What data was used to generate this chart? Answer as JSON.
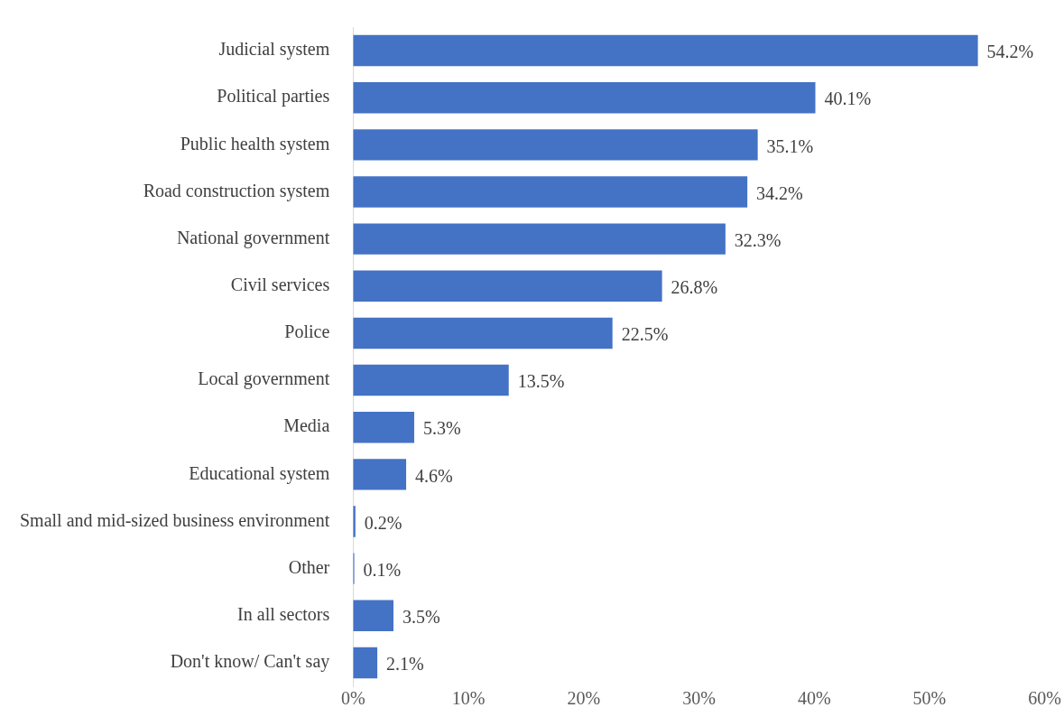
{
  "chart_data": {
    "type": "bar",
    "orientation": "horizontal",
    "categories": [
      "Judicial system",
      "Political parties",
      "Public health system",
      "Road construction system",
      "National government",
      "Civil services",
      "Police",
      "Local government",
      "Media",
      "Educational system",
      "Small and mid-sized business environment",
      "Other",
      "In all sectors",
      "Don't know/ Can't say"
    ],
    "values": [
      54.2,
      40.1,
      35.1,
      34.2,
      32.3,
      26.8,
      22.5,
      13.5,
      5.3,
      4.6,
      0.2,
      0.1,
      3.5,
      2.1
    ],
    "value_labels": [
      "54.2%",
      "40.1%",
      "35.1%",
      "34.2%",
      "32.3%",
      "26.8%",
      "22.5%",
      "13.5%",
      "5.3%",
      "4.6%",
      "0.2%",
      "0.1%",
      "3.5%",
      "2.1%"
    ],
    "color": "#4472c4",
    "xlim": [
      0,
      60
    ],
    "xticks": [
      {
        "value": 0,
        "label": "0%"
      },
      {
        "value": 10,
        "label": "10%"
      },
      {
        "value": 20,
        "label": "20%"
      },
      {
        "value": 30,
        "label": "30%"
      },
      {
        "value": 40,
        "label": "40%"
      },
      {
        "value": 50,
        "label": "50%"
      },
      {
        "value": 60,
        "label": "60%"
      }
    ],
    "grid": false,
    "legend": false
  }
}
